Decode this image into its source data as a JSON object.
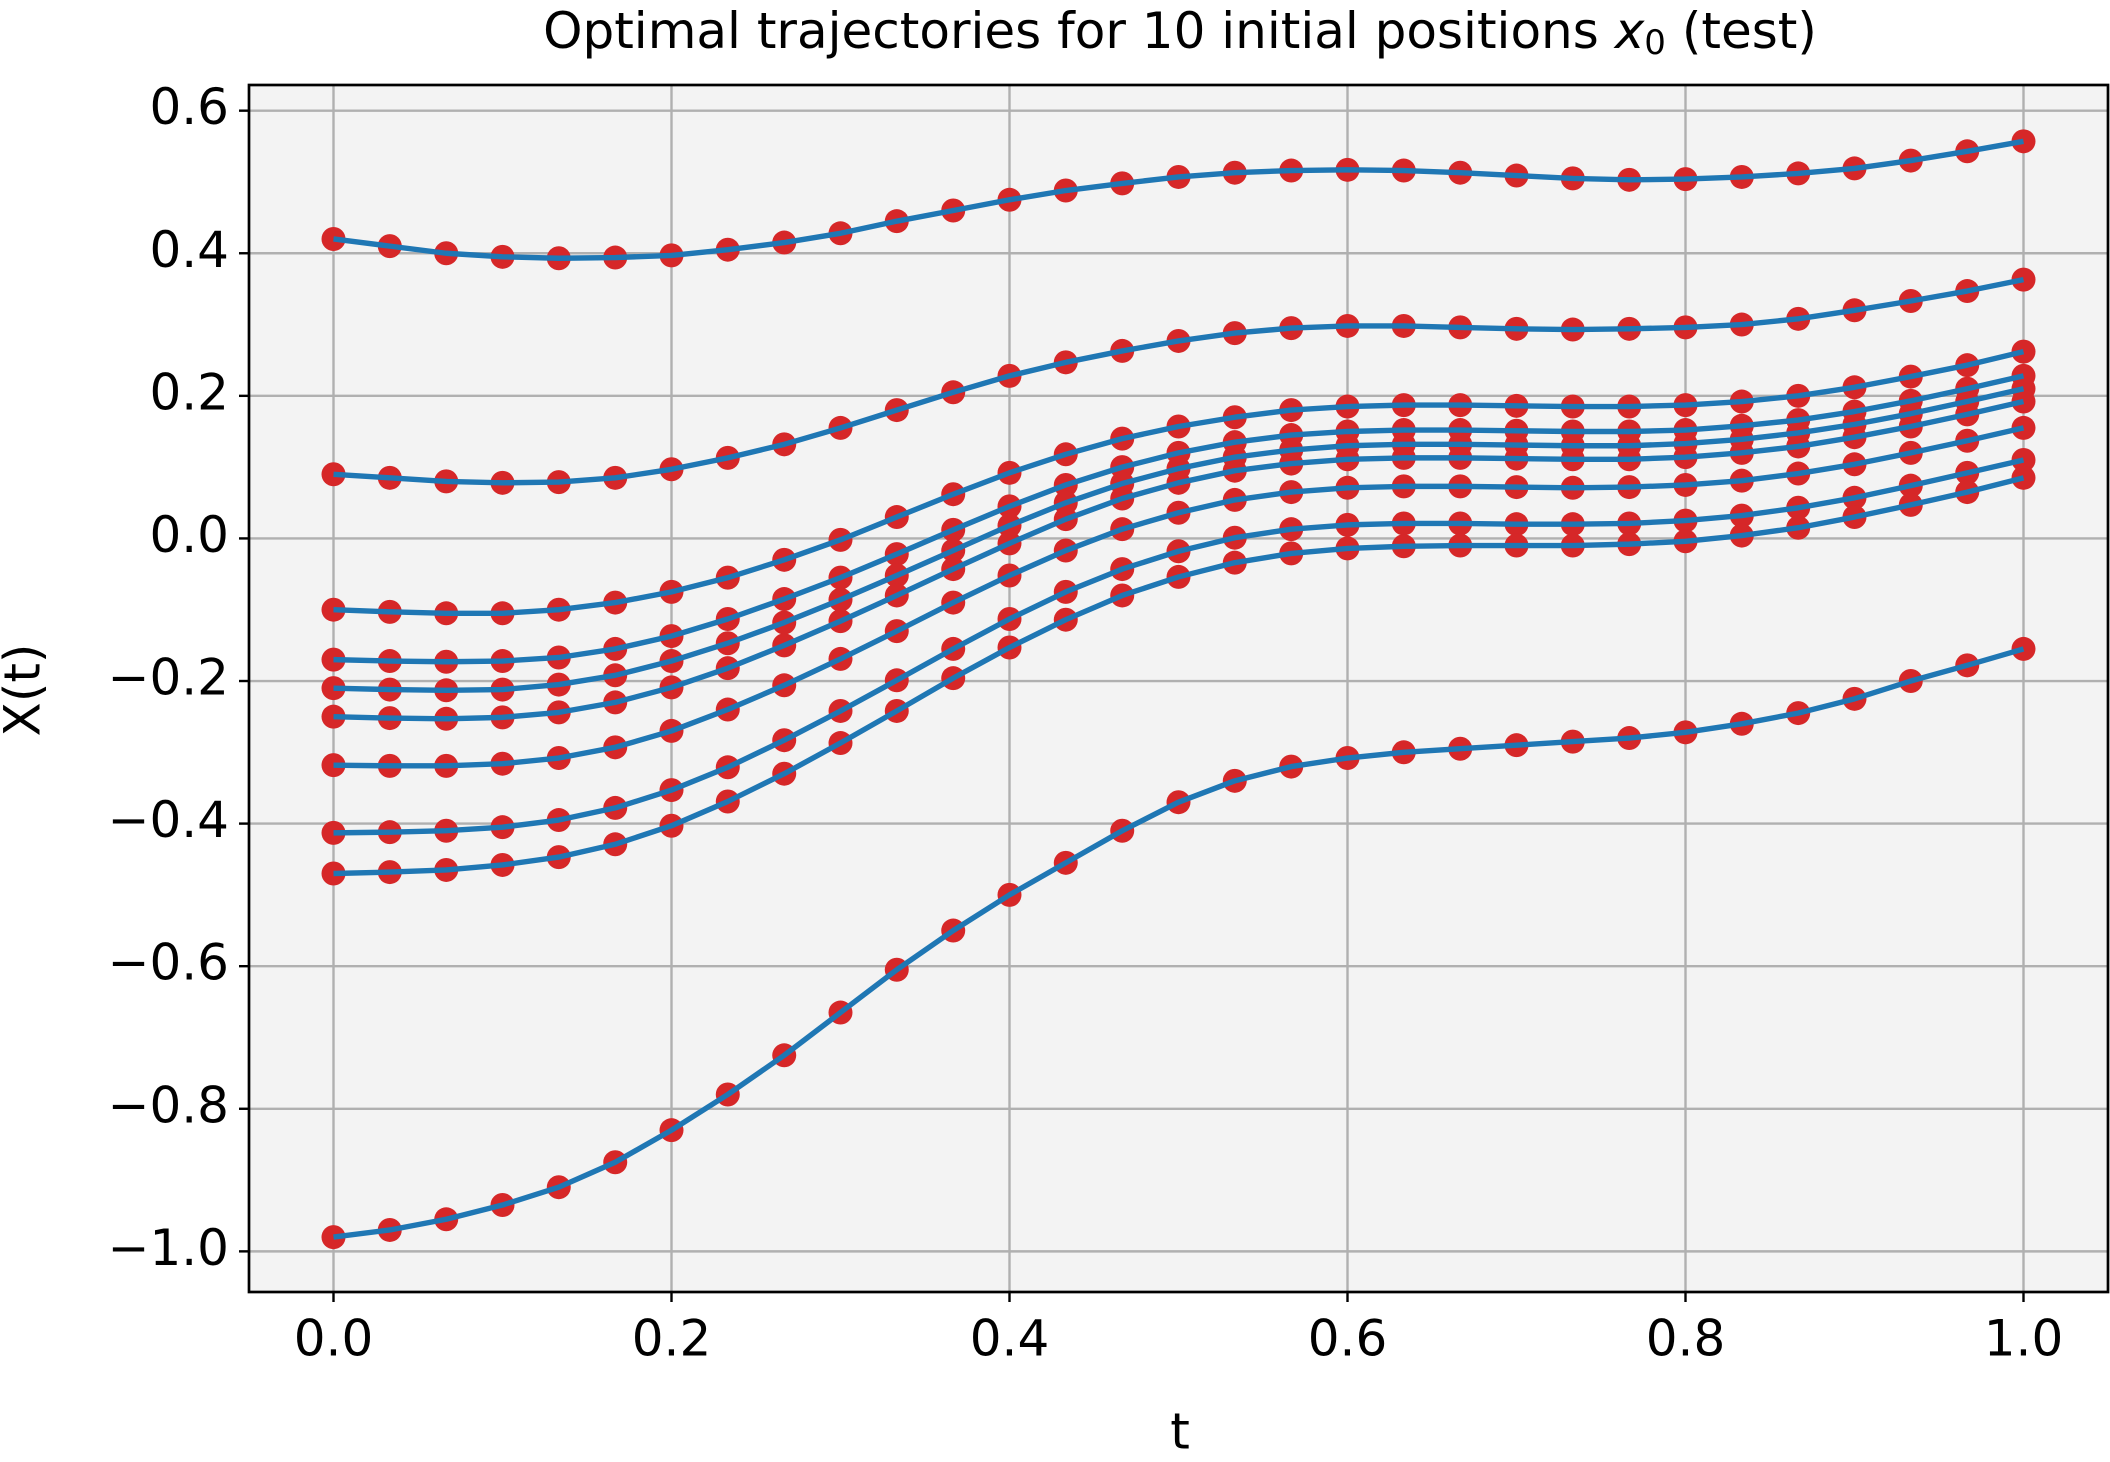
{
  "chart_data": {
    "type": "line",
    "title_parts": [
      "Optimal trajectories for 10 initial positions",
      "x",
      "0",
      "(test)"
    ],
    "xlabel": "t",
    "ylabel": "X(t)",
    "x": [
      0,
      0.0333,
      0.0667,
      0.1,
      0.1333,
      0.1667,
      0.2,
      0.2333,
      0.2667,
      0.3,
      0.3333,
      0.3667,
      0.4,
      0.4333,
      0.4667,
      0.5,
      0.5333,
      0.5667,
      0.6,
      0.6333,
      0.6667,
      0.7,
      0.7333,
      0.7667,
      0.8,
      0.8333,
      0.8667,
      0.9,
      0.9333,
      0.9667,
      1
    ],
    "line_color": "#1f77b4",
    "marker_color": "#d62728",
    "series": [
      {
        "values": [
          0.42,
          0.41,
          0.4,
          0.395,
          0.393,
          0.394,
          0.397,
          0.405,
          0.415,
          0.428,
          0.445,
          0.46,
          0.475,
          0.488,
          0.498,
          0.507,
          0.513,
          0.516,
          0.517,
          0.516,
          0.513,
          0.509,
          0.505,
          0.503,
          0.504,
          0.507,
          0.512,
          0.519,
          0.53,
          0.543,
          0.557
        ]
      },
      {
        "values": [
          0.09,
          0.085,
          0.08,
          0.078,
          0.079,
          0.085,
          0.097,
          0.113,
          0.132,
          0.155,
          0.18,
          0.205,
          0.228,
          0.247,
          0.263,
          0.277,
          0.288,
          0.295,
          0.298,
          0.298,
          0.296,
          0.294,
          0.293,
          0.294,
          0.296,
          0.3,
          0.308,
          0.32,
          0.333,
          0.347,
          0.363
        ]
      },
      {
        "values": [
          -0.1,
          -0.103,
          -0.105,
          -0.105,
          -0.1,
          -0.09,
          -0.075,
          -0.055,
          -0.03,
          -0.002,
          0.03,
          0.062,
          0.092,
          0.118,
          0.14,
          0.157,
          0.17,
          0.18,
          0.185,
          0.187,
          0.187,
          0.186,
          0.185,
          0.185,
          0.187,
          0.192,
          0.2,
          0.212,
          0.227,
          0.243,
          0.262
        ]
      },
      {
        "values": [
          -0.17,
          -0.172,
          -0.173,
          -0.172,
          -0.167,
          -0.155,
          -0.137,
          -0.113,
          -0.085,
          -0.055,
          -0.022,
          0.012,
          0.045,
          0.075,
          0.1,
          0.12,
          0.135,
          0.145,
          0.15,
          0.152,
          0.152,
          0.151,
          0.15,
          0.15,
          0.152,
          0.158,
          0.166,
          0.178,
          0.193,
          0.21,
          0.228
        ]
      },
      {
        "values": [
          -0.21,
          -0.212,
          -0.213,
          -0.212,
          -0.205,
          -0.192,
          -0.172,
          -0.147,
          -0.118,
          -0.086,
          -0.052,
          -0.017,
          0.018,
          0.05,
          0.077,
          0.098,
          0.114,
          0.124,
          0.13,
          0.132,
          0.132,
          0.131,
          0.13,
          0.13,
          0.133,
          0.139,
          0.148,
          0.16,
          0.175,
          0.192,
          0.21
        ]
      },
      {
        "values": [
          -0.25,
          -0.252,
          -0.253,
          -0.251,
          -0.244,
          -0.23,
          -0.209,
          -0.182,
          -0.15,
          -0.116,
          -0.08,
          -0.043,
          -0.007,
          0.027,
          0.056,
          0.078,
          0.095,
          0.105,
          0.111,
          0.113,
          0.113,
          0.112,
          0.111,
          0.111,
          0.114,
          0.12,
          0.129,
          0.142,
          0.157,
          0.174,
          0.192
        ]
      },
      {
        "values": [
          -0.318,
          -0.319,
          -0.319,
          -0.316,
          -0.308,
          -0.293,
          -0.27,
          -0.24,
          -0.206,
          -0.169,
          -0.13,
          -0.09,
          -0.052,
          -0.017,
          0.013,
          0.036,
          0.054,
          0.065,
          0.071,
          0.073,
          0.073,
          0.072,
          0.071,
          0.072,
          0.075,
          0.081,
          0.091,
          0.104,
          0.12,
          0.137,
          0.155
        ]
      },
      {
        "values": [
          -0.413,
          -0.412,
          -0.41,
          -0.405,
          -0.395,
          -0.378,
          -0.353,
          -0.321,
          -0.283,
          -0.242,
          -0.199,
          -0.155,
          -0.113,
          -0.075,
          -0.043,
          -0.018,
          0.001,
          0.013,
          0.019,
          0.021,
          0.021,
          0.02,
          0.02,
          0.021,
          0.025,
          0.032,
          0.043,
          0.057,
          0.074,
          0.092,
          0.11
        ]
      },
      {
        "values": [
          -0.47,
          -0.468,
          -0.465,
          -0.458,
          -0.447,
          -0.429,
          -0.403,
          -0.369,
          -0.33,
          -0.287,
          -0.242,
          -0.196,
          -0.153,
          -0.114,
          -0.08,
          -0.054,
          -0.034,
          -0.021,
          -0.014,
          -0.011,
          -0.01,
          -0.01,
          -0.01,
          -0.008,
          -0.004,
          0.004,
          0.015,
          0.03,
          0.047,
          0.065,
          0.085
        ]
      },
      {
        "values": [
          -0.98,
          -0.97,
          -0.955,
          -0.935,
          -0.91,
          -0.875,
          -0.83,
          -0.78,
          -0.725,
          -0.665,
          -0.605,
          -0.55,
          -0.5,
          -0.455,
          -0.41,
          -0.37,
          -0.34,
          -0.32,
          -0.308,
          -0.3,
          -0.295,
          -0.29,
          -0.285,
          -0.28,
          -0.272,
          -0.26,
          -0.245,
          -0.225,
          -0.2,
          -0.178,
          -0.155
        ]
      }
    ],
    "xlim": [
      -0.05,
      1.05
    ],
    "ylim": [
      -1.057,
      0.636
    ],
    "xticks": [
      {
        "value": 0,
        "label": "0.0"
      },
      0.2,
      0.4,
      0.6,
      0.8,
      {
        "value": 1,
        "label": "1.0"
      }
    ],
    "yticks": [
      {
        "value": -1.0,
        "label": "−1.0"
      },
      {
        "value": -0.8,
        "label": "−0.8"
      },
      {
        "value": -0.6,
        "label": "−0.6"
      },
      {
        "value": -0.4,
        "label": "−0.4"
      },
      {
        "value": -0.2,
        "label": "−0.2"
      },
      {
        "value": 0,
        "label": "0.0"
      },
      0.2,
      0.4,
      0.6
    ],
    "grid": true
  }
}
